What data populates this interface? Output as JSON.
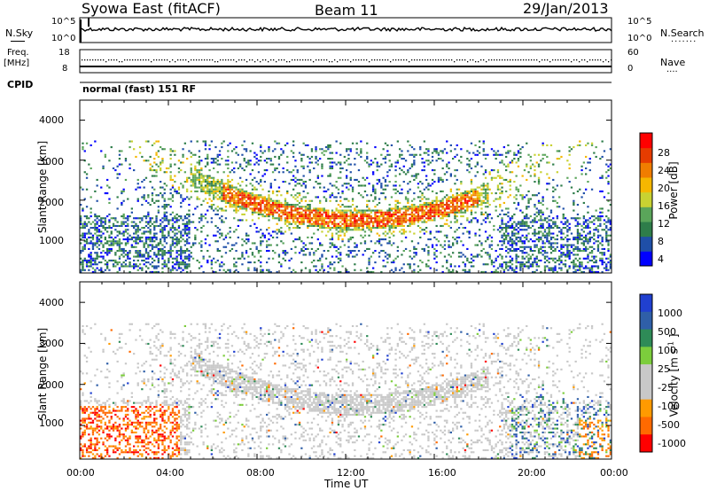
{
  "header": {
    "station": "Syowa East (fitACF)",
    "beam": "Beam 11",
    "date": "29/Jan/2013"
  },
  "status_panels": {
    "nsky_label": "N.Sky",
    "nsky_ticks": [
      "10^5",
      "10^0"
    ],
    "nsearch_label": "N.Search",
    "nsearch_ticks": [
      "10^5",
      "10^0"
    ],
    "freq_label": "Freq.",
    "freq_unit": "[MHz]",
    "freq_ticks": [
      "18",
      "8"
    ],
    "nave_label": "Nave",
    "nave_ticks": [
      "60",
      "0"
    ],
    "cpid_label": "CPID",
    "cpid_value": "normal (fast) 151 RF"
  },
  "colors": {
    "power_scale": [
      "#0000ff",
      "#1f4fa8",
      "#2e7d4a",
      "#5aa55a",
      "#c8d232",
      "#f5b700",
      "#f07d00",
      "#e63c00",
      "#ff0000"
    ],
    "velocity_scale": [
      "#2040d0",
      "#2f5fa8",
      "#2e8b57",
      "#7ccd3c",
      "#c8c8c8",
      "#c8c8c8",
      "#ff9a00",
      "#ff6a00",
      "#ff0000"
    ]
  },
  "chart_data": [
    {
      "type": "heatmap",
      "name": "power",
      "ylabel": "Slant Range [km]",
      "xlabel": "",
      "ylim": [
        180,
        4500
      ],
      "yticks": [
        "1000",
        "2000",
        "3000",
        "4000"
      ],
      "xlim_hours": [
        0,
        24
      ],
      "colorbar_label": "Power [dB]",
      "colorbar_ticks": [
        "4",
        "8",
        "12",
        "16",
        "20",
        "24",
        "28"
      ],
      "colorbar_range": [
        0,
        30
      ]
    },
    {
      "type": "heatmap",
      "name": "velocity",
      "ylabel": "Slant Range [km]",
      "xlabel": "Time UT",
      "ylim": [
        180,
        4500
      ],
      "yticks": [
        "1000",
        "2000",
        "3000",
        "4000"
      ],
      "xticks": [
        "00:00",
        "04:00",
        "08:00",
        "12:00",
        "16:00",
        "20:00",
        "00:00"
      ],
      "xlim_hours": [
        0,
        24
      ],
      "colorbar_label": "Velocity [m s",
      "colorbar_label_sup": "-1",
      "colorbar_ticks": [
        "1000",
        "500",
        "100",
        "25",
        "-25",
        "-100",
        "-500",
        "-1000"
      ]
    }
  ]
}
